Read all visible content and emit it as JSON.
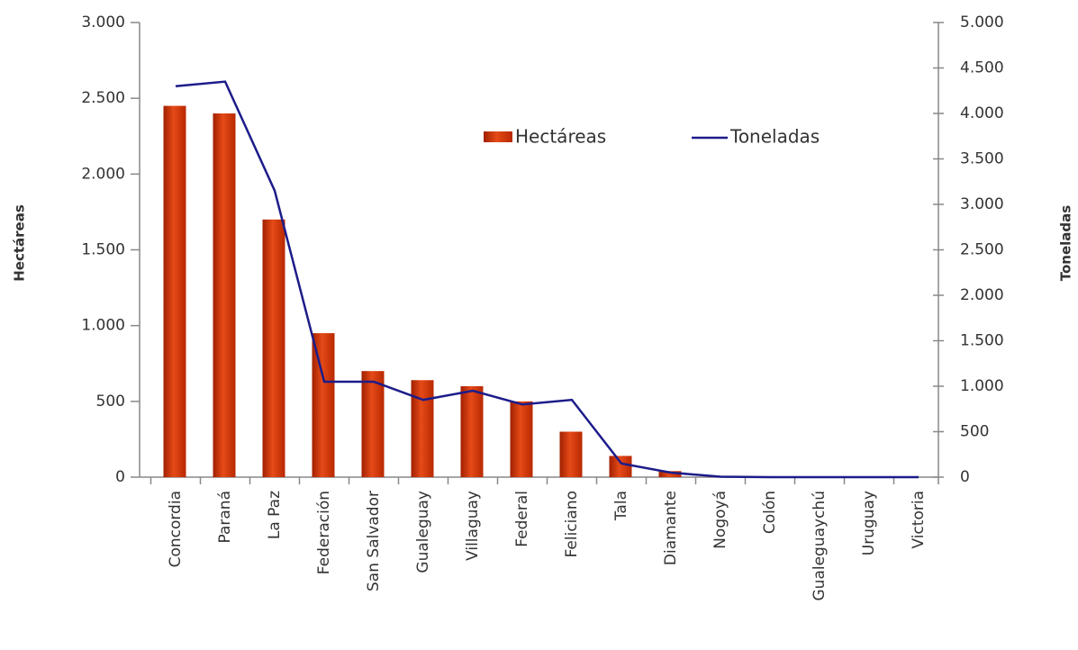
{
  "chart_data": {
    "type": "bar-line",
    "categories": [
      "Concordia",
      "Paraná",
      "La Paz",
      "Federación",
      "San Salvador",
      "Gualeguay",
      "Villaguay",
      "Federal",
      "Feliciano",
      "Tala",
      "Diamante",
      "Nogoyá",
      "Colón",
      "Gualeguaychú",
      "Uruguay",
      "Victoria"
    ],
    "series": [
      {
        "name": "Hectáreas",
        "type": "bar",
        "color": "#d63a10",
        "values": [
          2450,
          2400,
          1700,
          950,
          700,
          640,
          600,
          500,
          300,
          140,
          40,
          5,
          0,
          0,
          0,
          0
        ]
      },
      {
        "name": "Toneladas",
        "type": "line",
        "axis": "y2",
        "color": "#1c1c8a",
        "values": [
          4300,
          4350,
          3150,
          1050,
          1050,
          850,
          950,
          800,
          850,
          150,
          50,
          5,
          0,
          0,
          0,
          0
        ]
      }
    ],
    "y_label": "Hectáreas",
    "y2_label": "Toneladas",
    "ylim": [
      0,
      3000
    ],
    "yticks": [
      0,
      500,
      {
        "value": 1000,
        "label": "1.000"
      },
      {
        "value": 1500,
        "label": "1.500"
      },
      {
        "value": 2000,
        "label": "2.000"
      },
      {
        "value": 2500,
        "label": "2.500"
      },
      {
        "value": 3000,
        "label": "3.000"
      }
    ],
    "y2lim": [
      0,
      5000
    ],
    "y2ticks": [
      0,
      500,
      {
        "value": 1000,
        "label": "1.000"
      },
      {
        "value": 1500,
        "label": "1.500"
      },
      {
        "value": 2000,
        "label": "2.000"
      },
      {
        "value": 2500,
        "label": "2.500"
      },
      {
        "value": 3000,
        "label": "3.000"
      },
      {
        "value": 3500,
        "label": "3.500"
      },
      {
        "value": 4000,
        "label": "4.000"
      },
      {
        "value": 4500,
        "label": "4.500"
      },
      {
        "value": 5000,
        "label": "5.000"
      }
    ],
    "legend": "upper right"
  }
}
